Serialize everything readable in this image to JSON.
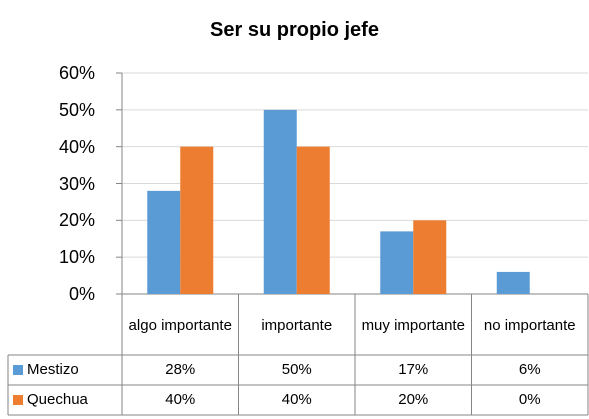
{
  "chart_data": {
    "type": "bar",
    "title": "Ser su propio jefe",
    "categories": [
      "algo importante",
      "importante",
      "muy importante",
      "no importante"
    ],
    "series": [
      {
        "name": "Mestizo",
        "color": "#5b9bd5",
        "values": [
          28,
          50,
          17,
          6
        ],
        "value_labels": [
          "28%",
          "50%",
          "17%",
          "6%"
        ]
      },
      {
        "name": "Quechua",
        "color": "#ed7d31",
        "values": [
          40,
          40,
          20,
          0
        ],
        "value_labels": [
          "40%",
          "40%",
          "20%",
          "0%"
        ]
      }
    ],
    "ylim": [
      0,
      60
    ],
    "yticks": [
      {
        "value": 0,
        "label": "0%"
      },
      {
        "value": 10,
        "label": "10%"
      },
      {
        "value": 20,
        "label": "20%"
      },
      {
        "value": 30,
        "label": "30%"
      },
      {
        "value": 40,
        "label": "40%"
      },
      {
        "value": 50,
        "label": "50%"
      },
      {
        "value": 60,
        "label": "60%"
      }
    ],
    "grid": true
  }
}
